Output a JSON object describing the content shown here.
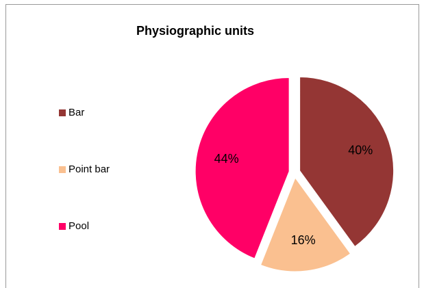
{
  "chart_data": {
    "type": "pie",
    "title": "Physiographic units",
    "categories": [
      "Bar",
      "Point bar",
      "Pool"
    ],
    "values": [
      40,
      16,
      44
    ],
    "value_labels": [
      "40%",
      "16%",
      "44%"
    ],
    "colors": [
      "#943634",
      "#fac090",
      "#ff0066"
    ],
    "legend": "left"
  }
}
